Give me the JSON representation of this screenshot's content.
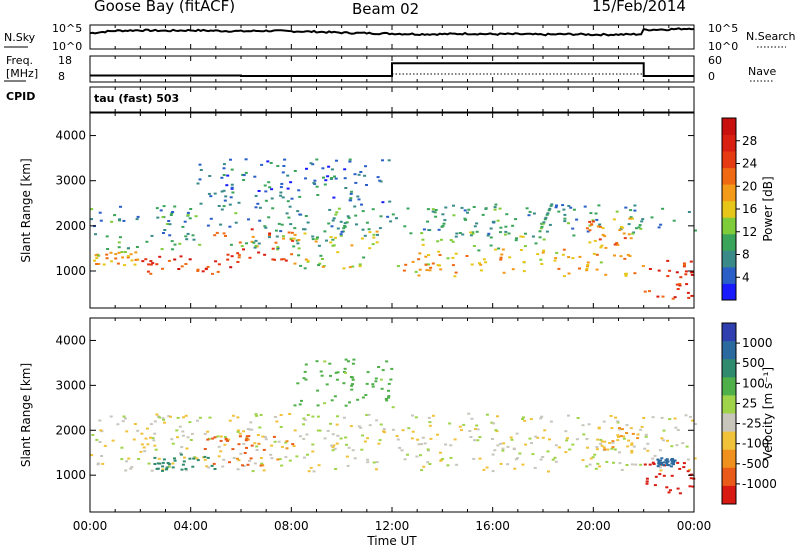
{
  "header": {
    "station": "Goose Bay (fitACF)",
    "beam": "Beam 02",
    "date": "15/Feb/2014"
  },
  "noise_panel": {
    "left_label": "N.Sky",
    "left_ticks": [
      "10^5",
      "10^0"
    ],
    "right_ticks": [
      "10^5",
      "10^0"
    ],
    "right_label": "N.Search",
    "series": [
      {
        "name": "N.Sky",
        "style": "solid",
        "x": [
          0,
          1,
          2,
          3,
          4,
          5,
          6,
          7,
          8,
          9,
          10,
          11,
          12,
          13,
          14,
          15,
          16,
          17,
          18,
          19,
          20,
          21,
          21.9,
          22,
          23,
          24
        ],
        "y": [
          3.3,
          3.8,
          3.9,
          3.8,
          3.9,
          3.8,
          3.7,
          3.8,
          3.7,
          3.6,
          3.4,
          3.3,
          3.2,
          3.1,
          3.1,
          3.2,
          3.1,
          3.1,
          3.0,
          3.1,
          3.0,
          3.0,
          3.1,
          4.0,
          4.1,
          4.3
        ]
      }
    ]
  },
  "freq_panel": {
    "left_label_top": "Freq.",
    "left_label_bottom": "[MHz]",
    "left_ticks": [
      "18",
      "8"
    ],
    "right_ticks": [
      "60",
      "0"
    ],
    "right_label": "Nave",
    "series": [
      {
        "name": "Freq.",
        "style": "solid",
        "x": [
          0,
          6,
          6,
          12,
          12,
          22,
          22,
          24
        ],
        "y": [
          10.5,
          10.5,
          10.3,
          10.3,
          15.2,
          15.2,
          10.3,
          10.3
        ]
      }
    ]
  },
  "cpid": {
    "label": "CPID",
    "value": "tau (fast) 503"
  },
  "power_panel": {
    "ylabel": "Slant Range [km]",
    "yticks": [
      "1000",
      "2000",
      "3000",
      "4000"
    ],
    "colorbar_label": "Power [dB]",
    "colorbar_ticks": [
      "4",
      "8",
      "12",
      "16",
      "20",
      "24",
      "28"
    ],
    "colors": [
      "#1a1aff",
      "#2a5fc8",
      "#3a8a8a",
      "#3aa55a",
      "#7fcc3a",
      "#e6c619",
      "#f39a18",
      "#f06a14",
      "#e63a12",
      "#d91e12",
      "#c8100e"
    ]
  },
  "velocity_panel": {
    "ylabel": "Slant Range [km]",
    "yticks": [
      "1000",
      "2000",
      "3000",
      "4000"
    ],
    "colorbar_label": "Velocity [m s⁻¹]",
    "colorbar_ticks": [
      "1000",
      "500",
      "100",
      "25",
      "-25",
      "-100",
      "-500",
      "-1000"
    ],
    "colors": [
      "#2f3fb0",
      "#2b6a9e",
      "#2f8a6e",
      "#4fb04a",
      "#9fd44a",
      "#c8c5bd",
      "#f0c23a",
      "#f0901e",
      "#ea5a18",
      "#d81a12"
    ]
  },
  "xaxis": {
    "label": "Time UT",
    "ticks": [
      "00:00",
      "04:00",
      "08:00",
      "12:00",
      "16:00",
      "20:00",
      "00:00"
    ]
  },
  "chart_data": [
    {
      "type": "line",
      "title": "",
      "xlabel": "Time UT",
      "ylabel": "N.Sky",
      "x": [
        0,
        1,
        2,
        3,
        4,
        5,
        6,
        7,
        8,
        9,
        10,
        11,
        12,
        13,
        14,
        15,
        16,
        17,
        18,
        19,
        20,
        21,
        21.9,
        22,
        23,
        24
      ],
      "series": [
        {
          "name": "N.Sky",
          "values": [
            3.3,
            3.8,
            3.9,
            3.8,
            3.9,
            3.8,
            3.7,
            3.8,
            3.7,
            3.6,
            3.4,
            3.3,
            3.2,
            3.1,
            3.1,
            3.2,
            3.1,
            3.1,
            3.0,
            3.1,
            3.0,
            3.0,
            3.1,
            4.0,
            4.1,
            4.3
          ]
        }
      ],
      "ylim": [
        0,
        5
      ]
    },
    {
      "type": "line",
      "xlabel": "Time UT",
      "ylabel": "Freq. [MHz]",
      "x": [
        0,
        6,
        6,
        12,
        12,
        22,
        22,
        24
      ],
      "series": [
        {
          "name": "Freq.",
          "values": [
            10.5,
            10.5,
            10.3,
            10.3,
            15.2,
            15.2,
            10.3,
            10.3
          ]
        }
      ],
      "ylim": [
        8,
        18
      ]
    },
    {
      "type": "heatmap",
      "title": "",
      "xlabel": "Time UT",
      "ylabel": "Slant Range [km]",
      "xlim": [
        0,
        24
      ],
      "ylim": [
        180,
        4500
      ],
      "colorbar": "Power [dB]",
      "clim": [
        0,
        32
      ],
      "regions": [
        {
          "t0": 0.0,
          "t1": 2.0,
          "r0": 1150,
          "r1": 1450,
          "value": 18
        },
        {
          "t0": 2.0,
          "t1": 6.0,
          "r0": 950,
          "r1": 1350,
          "value": 26
        },
        {
          "t0": 4.5,
          "t1": 8.0,
          "r0": 1250,
          "r1": 1950,
          "value": 24
        },
        {
          "t0": 0.0,
          "t1": 10.0,
          "r0": 1500,
          "r1": 1800,
          "value": 10
        },
        {
          "t0": 0.0,
          "t1": 24.0,
          "r0": 1800,
          "r1": 2500,
          "value": 8
        },
        {
          "t0": 8.0,
          "t1": 11.5,
          "r0": 1050,
          "r1": 1900,
          "value": 14
        },
        {
          "t0": 12.0,
          "t1": 22.0,
          "r0": 900,
          "r1": 1500,
          "value": 18
        },
        {
          "t0": 13.0,
          "t1": 18.0,
          "r0": 1450,
          "r1": 1900,
          "value": 12
        },
        {
          "t0": 19.5,
          "t1": 21.5,
          "r0": 1500,
          "r1": 2200,
          "value": 20
        },
        {
          "t0": 22.0,
          "t1": 24.0,
          "r0": 400,
          "r1": 1300,
          "value": 26
        },
        {
          "t0": 4.0,
          "t1": 12.0,
          "r0": 2500,
          "r1": 3500,
          "value": 6
        }
      ]
    },
    {
      "type": "heatmap",
      "xlabel": "Time UT",
      "ylabel": "Slant Range [km]",
      "xlim": [
        0,
        24
      ],
      "ylim": [
        180,
        4500
      ],
      "colorbar": "Velocity [m s⁻¹]",
      "clim": [
        -1000,
        1000
      ],
      "regions": [
        {
          "t0": 0.0,
          "t1": 24.0,
          "r0": 1100,
          "r1": 2400,
          "value": 0
        },
        {
          "t0": 2.5,
          "t1": 5.0,
          "r0": 1100,
          "r1": 1500,
          "value": 400
        },
        {
          "t0": 4.5,
          "t1": 8.0,
          "r0": 1200,
          "r1": 1900,
          "value": -300
        },
        {
          "t0": 20.0,
          "t1": 22.0,
          "r0": 1500,
          "r1": 2100,
          "value": -100
        },
        {
          "t0": 22.0,
          "t1": 24.0,
          "r0": 600,
          "r1": 1300,
          "value": -600
        },
        {
          "t0": 22.5,
          "t1": 23.2,
          "r0": 1200,
          "r1": 1400,
          "value": 700
        },
        {
          "t0": 8.0,
          "t1": 12.0,
          "r0": 2500,
          "r1": 3600,
          "value": 150
        }
      ]
    }
  ]
}
